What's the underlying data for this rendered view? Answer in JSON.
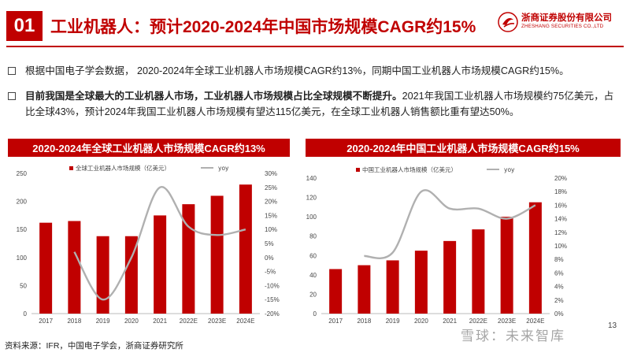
{
  "header": {
    "number": "01",
    "title": "工业机器人：预计2020-2024年中国市场规模CAGR约15%",
    "logo_cn": "浙商证券股份有限公司",
    "logo_en": "ZHESHANG SECURITIES CO.,LTD"
  },
  "bullets": {
    "b1": "根据中国电子学会数据， 2020-2024年全球工业机器人市场规模CAGR约13%，同期中国工业机器人市场规模CAGR约15%。",
    "b2_bold": "目前我国是全球最大的工业机器人市场，工业机器人市场规模占比全球规模不断提升。",
    "b2_rest": "2021年我国工业机器人市场规模约75亿美元，占比全球43%，预计2024年我国工业机器人市场规模有望达115亿美元，在全球工业机器人销售额比重有望达50%。"
  },
  "colors": {
    "bar": "#c00000",
    "line": "#b0b0b0",
    "accent": "#c00000"
  },
  "chart_data": [
    {
      "type": "bar",
      "title": "2020-2024年全球工业机器人市场规模CAGR约13%",
      "categories": [
        "2017",
        "2018",
        "2019",
        "2020",
        "2021",
        "2022E",
        "2023E",
        "2024E"
      ],
      "series": [
        {
          "name": "全球工业机器人市场规模（亿美元）",
          "type": "bar",
          "axis": "left",
          "values": [
            162,
            165,
            138,
            138,
            175,
            195,
            210,
            230
          ]
        },
        {
          "name": "yoy",
          "type": "line",
          "axis": "right",
          "unit": "%",
          "values": [
            null,
            2,
            -15,
            0,
            25,
            11,
            8,
            10
          ]
        }
      ],
      "y_left": {
        "min": 0,
        "max": 250,
        "ticks": [
          "0",
          "50",
          "100",
          "150",
          "200",
          "250"
        ]
      },
      "y_right": {
        "min": -20,
        "max": 30,
        "ticks": [
          "-20%",
          "-15%",
          "-10%",
          "-5%",
          "0%",
          "5%",
          "10%",
          "15%",
          "20%",
          "25%",
          "30%"
        ]
      },
      "legend": "top"
    },
    {
      "type": "bar",
      "title": "2020-2024年中国工业机器人市场规模CAGR约15%",
      "categories": [
        "2017",
        "2018",
        "2019",
        "2020",
        "2021",
        "2022E",
        "2023E",
        "2024E"
      ],
      "series": [
        {
          "name": "中国工业机器人市场规模（亿美元）",
          "type": "bar",
          "axis": "left",
          "values": [
            46,
            50,
            55,
            65,
            75,
            87,
            100,
            115
          ]
        },
        {
          "name": "yoy",
          "type": "line",
          "axis": "right",
          "unit": "%",
          "values": [
            null,
            8.5,
            9,
            18,
            15.5,
            15.5,
            14,
            16
          ]
        }
      ],
      "y_left": {
        "min": 0,
        "max": 140,
        "ticks": [
          "0",
          "20",
          "40",
          "60",
          "80",
          "100",
          "120",
          "140"
        ]
      },
      "y_right": {
        "min": 0,
        "max": 20,
        "ticks": [
          "0%",
          "2%",
          "4%",
          "6%",
          "8%",
          "10%",
          "12%",
          "14%",
          "16%",
          "18%",
          "20%"
        ]
      },
      "legend": "top"
    }
  ],
  "footer": {
    "source": "资料来源：IFR，中国电子学会，浙商证券研究所",
    "page": "13",
    "watermark": "雪球：未来智库"
  }
}
